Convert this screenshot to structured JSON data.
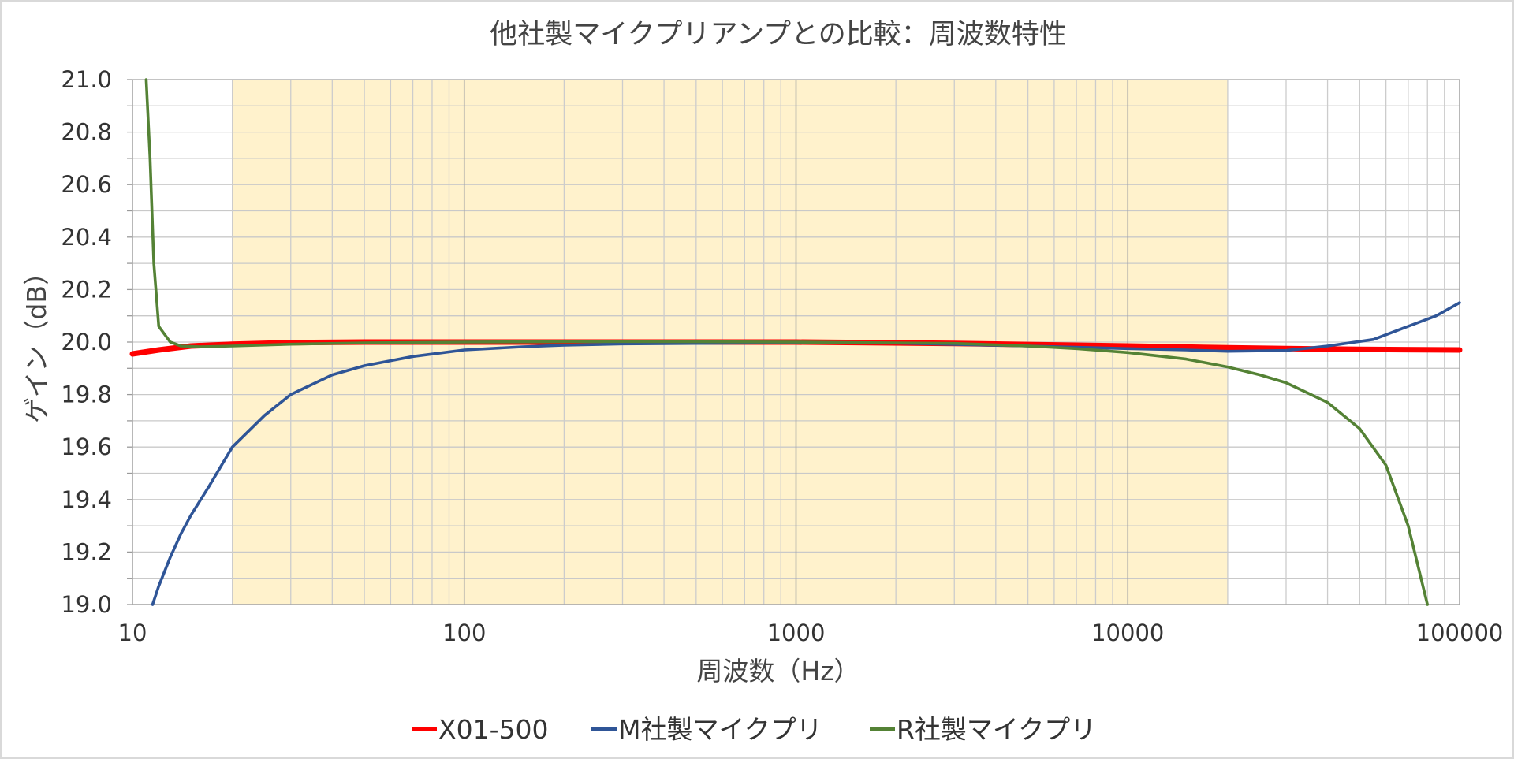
{
  "chart_data": {
    "type": "line",
    "title": "他社製マイクプリアンプとの比較：周波数特性",
    "xlabel": "周波数（Hz）",
    "ylabel": "ゲイン（dB）",
    "x_scale": "log",
    "xlim": [
      10,
      100000
    ],
    "ylim": [
      19.0,
      21.0
    ],
    "x_ticks": [
      "10",
      "100",
      "1000",
      "10000",
      "100000"
    ],
    "y_ticks": [
      "21.0",
      "20.8",
      "20.6",
      "20.4",
      "20.2",
      "20.0",
      "19.8",
      "19.6",
      "19.4",
      "19.2",
      "19.0"
    ],
    "grid": true,
    "highlight_band": {
      "from": 20,
      "to": 20000,
      "color": "#fff2cc"
    },
    "legend_position": "bottom",
    "series": [
      {
        "name": "X01-500",
        "color": "#ff0000",
        "points": [
          [
            10,
            19.955
          ],
          [
            12,
            19.97
          ],
          [
            15,
            19.985
          ],
          [
            20,
            19.992
          ],
          [
            30,
            19.998
          ],
          [
            50,
            20.0
          ],
          [
            100,
            20.0
          ],
          [
            300,
            20.0
          ],
          [
            1000,
            20.0
          ],
          [
            3000,
            19.995
          ],
          [
            10000,
            19.985
          ],
          [
            20000,
            19.978
          ],
          [
            30000,
            19.975
          ],
          [
            50000,
            19.972
          ],
          [
            100000,
            19.97
          ]
        ]
      },
      {
        "name": "M社製マイクプリ",
        "color": "#2f5597",
        "points": [
          [
            11.5,
            19.0
          ],
          [
            12,
            19.07
          ],
          [
            13,
            19.18
          ],
          [
            14,
            19.27
          ],
          [
            15,
            19.34
          ],
          [
            17,
            19.45
          ],
          [
            20,
            19.6
          ],
          [
            25,
            19.72
          ],
          [
            30,
            19.8
          ],
          [
            40,
            19.875
          ],
          [
            50,
            19.91
          ],
          [
            70,
            19.945
          ],
          [
            100,
            19.97
          ],
          [
            150,
            19.982
          ],
          [
            200,
            19.988
          ],
          [
            300,
            19.993
          ],
          [
            500,
            19.995
          ],
          [
            1000,
            19.997
          ],
          [
            2000,
            19.996
          ],
          [
            5000,
            19.985
          ],
          [
            10000,
            19.975
          ],
          [
            15000,
            19.97
          ],
          [
            20000,
            19.965
          ],
          [
            30000,
            19.968
          ],
          [
            40000,
            19.985
          ],
          [
            55000,
            20.01
          ],
          [
            70000,
            20.06
          ],
          [
            85000,
            20.1
          ],
          [
            100000,
            20.15
          ]
        ]
      },
      {
        "name": "R社製マイクプリ",
        "color": "#548235",
        "points": [
          [
            11,
            21.0
          ],
          [
            11.3,
            20.7
          ],
          [
            11.6,
            20.3
          ],
          [
            12,
            20.06
          ],
          [
            13,
            20.0
          ],
          [
            14,
            19.985
          ],
          [
            16,
            19.982
          ],
          [
            20,
            19.985
          ],
          [
            30,
            19.992
          ],
          [
            50,
            19.997
          ],
          [
            100,
            20.0
          ],
          [
            300,
            20.002
          ],
          [
            1000,
            20.0
          ],
          [
            3000,
            19.995
          ],
          [
            5000,
            19.985
          ],
          [
            7000,
            19.975
          ],
          [
            10000,
            19.96
          ],
          [
            15000,
            19.935
          ],
          [
            20000,
            19.905
          ],
          [
            25000,
            19.875
          ],
          [
            30000,
            19.845
          ],
          [
            40000,
            19.77
          ],
          [
            50000,
            19.67
          ],
          [
            60000,
            19.53
          ],
          [
            70000,
            19.3
          ],
          [
            80000,
            19.0
          ]
        ]
      }
    ]
  }
}
